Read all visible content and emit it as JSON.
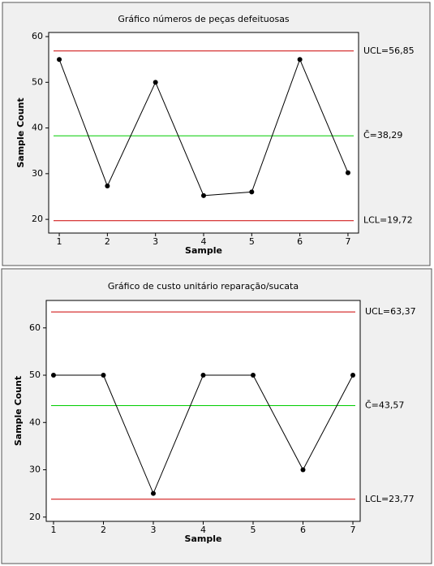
{
  "chart_data": [
    {
      "type": "line",
      "title": "Gráfico  números de peças defeituosas",
      "x_label": "Sample",
      "y_label": "Sample Count",
      "x": [
        1,
        2,
        3,
        4,
        5,
        6,
        7
      ],
      "xlim": [
        0.78,
        7.22
      ],
      "xticks": [
        1,
        2,
        3,
        4,
        5,
        6,
        7
      ],
      "ylim": [
        17,
        60.9
      ],
      "yticks": [
        20,
        30,
        40,
        50,
        60
      ],
      "series": [
        {
          "color": "#000000",
          "values": [
            55,
            27.3,
            50,
            25.2,
            26,
            55,
            30.2
          ]
        }
      ],
      "control_lines": [
        {
          "value": 56.85,
          "label": "UCL=56,85",
          "color": "#cc0000"
        },
        {
          "value": 38.29,
          "label": "C̄=38,29",
          "color": "#00cc00"
        },
        {
          "value": 19.72,
          "label": "LCL=19,72",
          "color": "#cc0000"
        }
      ]
    },
    {
      "type": "line",
      "title": "Gráfico de custo unitário reparação/sucata",
      "x_label": "Sample",
      "y_label": "Sample Count",
      "x": [
        1,
        2,
        3,
        4,
        5,
        6,
        7
      ],
      "xlim": [
        0.854,
        7.146
      ],
      "xticks": [
        1,
        2,
        3,
        4,
        5,
        6,
        7
      ],
      "ylim": [
        19.1,
        65.8
      ],
      "yticks": [
        20,
        30,
        40,
        50,
        60
      ],
      "series": [
        {
          "color": "#000000",
          "values": [
            50,
            50,
            25,
            50,
            50,
            30,
            50
          ]
        }
      ],
      "control_lines": [
        {
          "value": 63.37,
          "label": "UCL=63,37",
          "color": "#cc0000"
        },
        {
          "value": 43.57,
          "label": "C̄=43,57",
          "color": "#00cc00"
        },
        {
          "value": 23.77,
          "label": "LCL=23,77",
          "color": "#cc0000"
        }
      ]
    }
  ]
}
